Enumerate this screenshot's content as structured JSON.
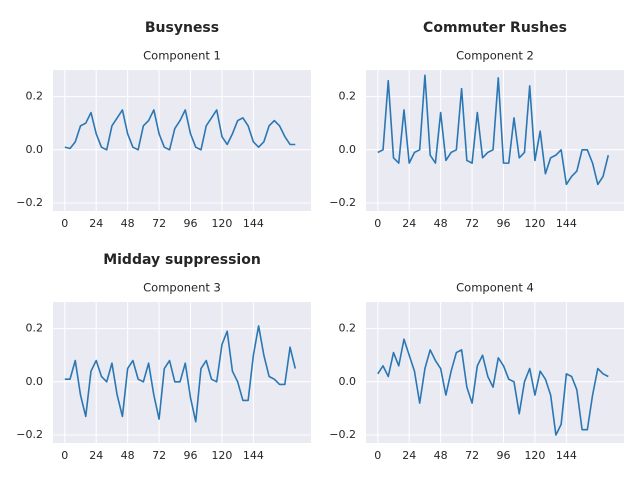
{
  "chart_data": [
    {
      "type": "line",
      "title": "Busyness",
      "subtitle": "Component 1",
      "x": [
        0,
        4,
        8,
        12,
        16,
        20,
        24,
        28,
        32,
        36,
        40,
        44,
        48,
        52,
        56,
        60,
        64,
        68,
        72,
        76,
        80,
        84,
        88,
        92,
        96,
        100,
        104,
        108,
        112,
        116,
        120,
        124,
        128,
        132,
        136,
        140,
        144,
        148,
        152,
        156,
        160,
        164,
        168,
        172,
        176
      ],
      "values": [
        0.01,
        0.005,
        0.03,
        0.09,
        0.1,
        0.14,
        0.06,
        0.01,
        0.0,
        0.09,
        0.12,
        0.15,
        0.06,
        0.01,
        0.0,
        0.09,
        0.11,
        0.15,
        0.06,
        0.01,
        0.0,
        0.08,
        0.11,
        0.15,
        0.06,
        0.01,
        0.0,
        0.09,
        0.12,
        0.15,
        0.05,
        0.02,
        0.06,
        0.11,
        0.12,
        0.09,
        0.03,
        0.01,
        0.03,
        0.09,
        0.11,
        0.09,
        0.05,
        0.02,
        0.02
      ],
      "color": "#2a77b4",
      "xlim": [
        -9,
        188
      ],
      "ylim": [
        -0.23,
        0.3
      ],
      "xticks": [
        0,
        24,
        48,
        72,
        96,
        120,
        144
      ],
      "yticks": [
        {
          "value": -0.2,
          "label": "−0.2"
        },
        {
          "value": 0,
          "label": "0.0"
        },
        0.2
      ],
      "grid": true
    },
    {
      "type": "line",
      "title": "Commuter Rushes",
      "subtitle": "Component 2",
      "x": [
        0,
        4,
        8,
        12,
        16,
        20,
        24,
        28,
        32,
        36,
        40,
        44,
        48,
        52,
        56,
        60,
        64,
        68,
        72,
        76,
        80,
        84,
        88,
        92,
        96,
        100,
        104,
        108,
        112,
        116,
        120,
        124,
        128,
        132,
        136,
        140,
        144,
        148,
        152,
        156,
        160,
        164,
        168,
        172,
        176
      ],
      "values": [
        -0.01,
        0.0,
        0.26,
        -0.03,
        -0.05,
        0.15,
        -0.05,
        -0.01,
        0.0,
        0.28,
        -0.02,
        -0.05,
        0.14,
        -0.04,
        -0.01,
        0.0,
        0.23,
        -0.04,
        -0.05,
        0.14,
        -0.03,
        -0.01,
        0.0,
        0.27,
        -0.05,
        -0.05,
        0.12,
        -0.03,
        -0.01,
        0.24,
        -0.04,
        0.07,
        -0.09,
        -0.03,
        -0.02,
        0.0,
        -0.13,
        -0.1,
        -0.08,
        0.0,
        0.0,
        -0.05,
        -0.13,
        -0.1,
        -0.02
      ],
      "color": "#2a77b4",
      "xlim": [
        -9,
        188
      ],
      "ylim": [
        -0.23,
        0.3
      ],
      "xticks": [
        0,
        24,
        48,
        72,
        96,
        120,
        144
      ],
      "yticks": [
        {
          "value": -0.2,
          "label": "−0.2"
        },
        {
          "value": 0,
          "label": "0.0"
        },
        0.2
      ],
      "grid": true
    },
    {
      "type": "line",
      "title": "Midday suppression",
      "subtitle": "Component 3",
      "x": [
        0,
        4,
        8,
        12,
        16,
        20,
        24,
        28,
        32,
        36,
        40,
        44,
        48,
        52,
        56,
        60,
        64,
        68,
        72,
        76,
        80,
        84,
        88,
        92,
        96,
        100,
        104,
        108,
        112,
        116,
        120,
        124,
        128,
        132,
        136,
        140,
        144,
        148,
        152,
        156,
        160,
        164,
        168,
        172,
        176
      ],
      "values": [
        0.01,
        0.01,
        0.08,
        -0.05,
        -0.13,
        0.04,
        0.08,
        0.02,
        0.0,
        0.07,
        -0.05,
        -0.13,
        0.05,
        0.08,
        0.01,
        0.0,
        0.07,
        -0.05,
        -0.14,
        0.05,
        0.08,
        0.0,
        0.0,
        0.07,
        -0.06,
        -0.15,
        0.05,
        0.08,
        0.01,
        0.0,
        0.14,
        0.19,
        0.04,
        0.0,
        -0.07,
        -0.07,
        0.1,
        0.21,
        0.1,
        0.02,
        0.01,
        -0.01,
        -0.01,
        0.13,
        0.05
      ],
      "color": "#2a77b4",
      "xlim": [
        -9,
        188
      ],
      "ylim": [
        -0.23,
        0.3
      ],
      "xticks": [
        0,
        24,
        48,
        72,
        96,
        120,
        144
      ],
      "yticks": [
        {
          "value": -0.2,
          "label": "−0.2"
        },
        {
          "value": 0,
          "label": "0.0"
        },
        0.2
      ],
      "grid": true
    },
    {
      "type": "line",
      "subtitle": "Component 4",
      "x": [
        0,
        4,
        8,
        12,
        16,
        20,
        24,
        28,
        32,
        36,
        40,
        44,
        48,
        52,
        56,
        60,
        64,
        68,
        72,
        76,
        80,
        84,
        88,
        92,
        96,
        100,
        104,
        108,
        112,
        116,
        120,
        124,
        128,
        132,
        136,
        140,
        144,
        148,
        152,
        156,
        160,
        164,
        168,
        172,
        176
      ],
      "values": [
        0.03,
        0.06,
        0.02,
        0.11,
        0.06,
        0.16,
        0.1,
        0.04,
        -0.08,
        0.05,
        0.12,
        0.08,
        0.05,
        -0.05,
        0.04,
        0.11,
        0.12,
        -0.02,
        -0.08,
        0.06,
        0.1,
        0.02,
        -0.02,
        0.09,
        0.06,
        0.01,
        0.0,
        -0.12,
        0.0,
        0.05,
        -0.05,
        0.04,
        0.01,
        -0.05,
        -0.2,
        -0.16,
        0.03,
        0.02,
        -0.03,
        -0.18,
        -0.18,
        -0.05,
        0.05,
        0.03,
        0.02
      ],
      "color": "#2a77b4",
      "xlim": [
        -9,
        188
      ],
      "ylim": [
        -0.23,
        0.3
      ],
      "xticks": [
        0,
        24,
        48,
        72,
        96,
        120,
        144
      ],
      "yticks": [
        {
          "value": -0.2,
          "label": "−0.2"
        },
        {
          "value": 0,
          "label": "0.0"
        },
        0.2
      ],
      "grid": true
    }
  ]
}
